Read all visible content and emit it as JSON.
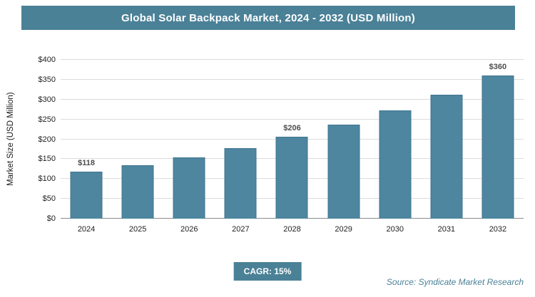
{
  "header": {
    "title": "Global Solar Backpack Market, 2024 - 2032 (USD Million)"
  },
  "colors": {
    "teal": "#4a8197",
    "bar_fill": "#4e86a0",
    "bar_border": "#40748e",
    "gridline": "#dcdcdc",
    "value_label": "#4d4d4d"
  },
  "chart_data": {
    "type": "bar",
    "title": "Global Solar Backpack Market, 2024 - 2032 (USD Million)",
    "categories": [
      "2024",
      "2025",
      "2026",
      "2027",
      "2028",
      "2029",
      "2030",
      "2031",
      "2032"
    ],
    "values": [
      118,
      135,
      155,
      178,
      206,
      237,
      272,
      313,
      360
    ],
    "bar_labels": [
      "$118",
      "",
      "",
      "",
      "$206",
      "",
      "",
      "",
      "$360"
    ],
    "xlabel": "",
    "ylabel": "Market Size (USD Million)",
    "ylim": [
      0,
      400
    ],
    "ytick_step": 50,
    "yticks": [
      "$0",
      "$50",
      "$100",
      "$150",
      "$200",
      "$250",
      "$300",
      "$350",
      "$400"
    ],
    "grid": "horizontal",
    "legend": "none"
  },
  "footer": {
    "cagr_label": "CAGR: 15%",
    "source": "Source: Syndicate Market Research"
  }
}
